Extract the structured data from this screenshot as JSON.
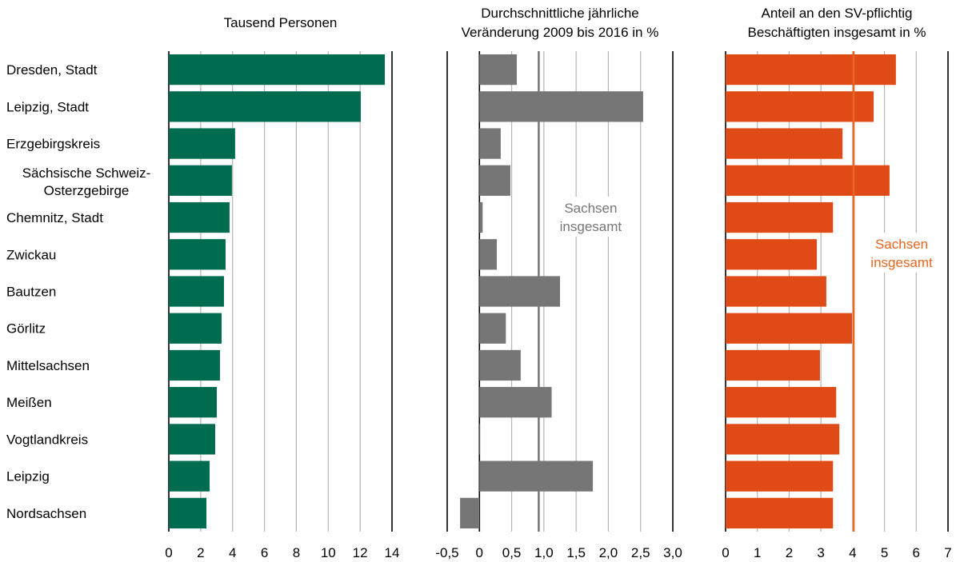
{
  "chart_data": [
    {
      "type": "bar",
      "orientation": "horizontal",
      "title": "Tausend Personen",
      "categories": [
        "Dresden, Stadt",
        "Leipzig, Stadt",
        "Erzgebirgskreis",
        "Sächsische Schweiz-\nOsterzgebirge",
        "Chemnitz, Stadt",
        "Zwickau",
        "Bautzen",
        "Görlitz",
        "Mittelsachsen",
        "Meißen",
        "Vogtlandkreis",
        "Leipzig",
        "Nordsachsen"
      ],
      "values": [
        13.55,
        12.04,
        4.16,
        3.96,
        3.81,
        3.56,
        3.46,
        3.31,
        3.21,
        3.01,
        2.91,
        2.56,
        2.36
      ],
      "color": "#006c4f",
      "xlim": [
        0,
        14
      ],
      "xticks": [
        0,
        2,
        4,
        6,
        8,
        10,
        12,
        14
      ],
      "grid": true
    },
    {
      "type": "bar",
      "orientation": "horizontal",
      "title": "Durchschnittliche jährliche\nVeränderung 2009 bis 2016 in %",
      "values": [
        0.58,
        2.54,
        0.33,
        0.48,
        0.05,
        0.27,
        1.25,
        0.41,
        0.64,
        1.12,
        0.01,
        1.76,
        -0.3
      ],
      "color": "#767676",
      "xlim": [
        -0.5,
        3.0
      ],
      "xticks": [
        {
          "value": -0.5,
          "label": "-0,5"
        },
        0,
        {
          "value": 0.5,
          "label": "0,5"
        },
        {
          "value": 1.0,
          "label": "1,0"
        },
        {
          "value": 1.5,
          "label": "1,5"
        },
        {
          "value": 2.0,
          "label": "2,0"
        },
        {
          "value": 2.5,
          "label": "2,5"
        },
        {
          "value": 3.0,
          "label": "3,0"
        }
      ],
      "grid": true,
      "reference": {
        "value": 0.92,
        "label": "Sachsen\ninsgesamt",
        "color": "#767676"
      }
    },
    {
      "type": "bar",
      "orientation": "horizontal",
      "title": "Anteil an den SV-pflichtig\nBeschäftigten insgesamt in %",
      "values": [
        5.36,
        4.66,
        3.68,
        5.16,
        3.38,
        2.87,
        3.17,
        3.98,
        2.97,
        3.48,
        3.58,
        3.38,
        3.38
      ],
      "color": "#e04a17",
      "xlim": [
        0,
        7
      ],
      "xticks": [
        0,
        1,
        2,
        3,
        4,
        5,
        6,
        7
      ],
      "grid": true,
      "reference": {
        "value": 4.03,
        "label": "Sachsen\ninsgesamt",
        "color": "#e8661f"
      }
    }
  ]
}
